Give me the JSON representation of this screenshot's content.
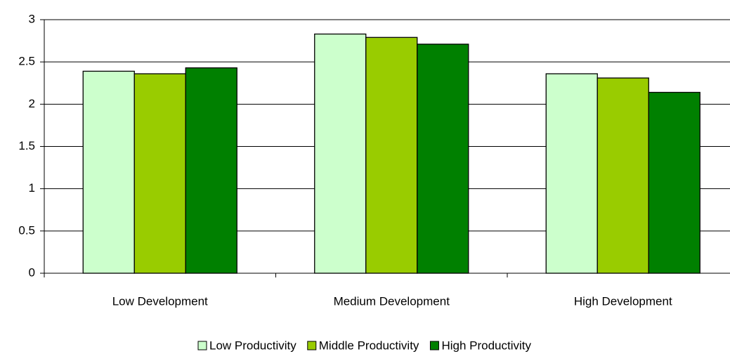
{
  "chart_data": {
    "type": "bar",
    "categories": [
      "Low Development",
      "Medium Development",
      "High Development"
    ],
    "series": [
      {
        "name": "Low Productivity",
        "color": "#ccffcc",
        "values": [
          2.39,
          2.83,
          2.36
        ]
      },
      {
        "name": "Middle Productivity",
        "color": "#99cc00",
        "values": [
          2.36,
          2.79,
          2.31
        ]
      },
      {
        "name": "High Productivity",
        "color": "#008000",
        "values": [
          2.43,
          2.71,
          2.14
        ]
      }
    ],
    "ylim": [
      0,
      3
    ],
    "yticks": [
      0,
      0.5,
      1,
      1.5,
      2,
      2.5,
      3
    ],
    "grid": true,
    "legend": "bottom"
  }
}
